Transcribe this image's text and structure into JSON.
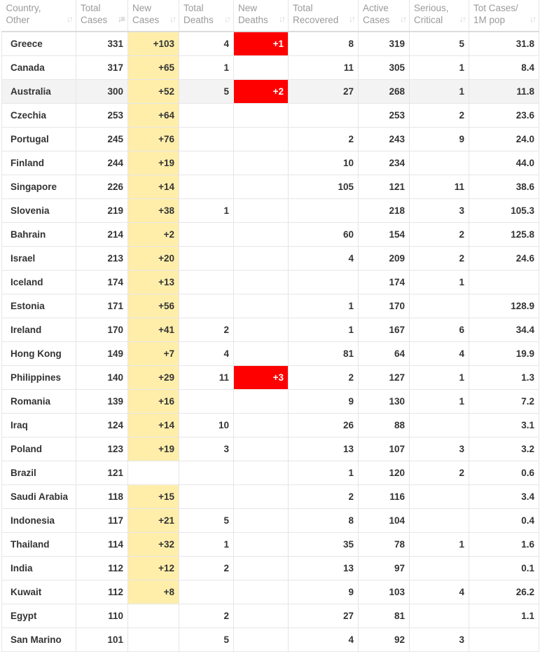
{
  "headers": [
    {
      "key": "country",
      "line1": "Country,",
      "line2": "Other"
    },
    {
      "key": "total_cases",
      "line1": "Total",
      "line2": "Cases"
    },
    {
      "key": "new_cases",
      "line1": "New",
      "line2": "Cases"
    },
    {
      "key": "total_deaths",
      "line1": "Total",
      "line2": "Deaths"
    },
    {
      "key": "new_deaths",
      "line1": "New",
      "line2": "Deaths"
    },
    {
      "key": "total_recovered",
      "line1": "Total",
      "line2": "Recovered"
    },
    {
      "key": "active_cases",
      "line1": "Active",
      "line2": "Cases"
    },
    {
      "key": "serious_critical",
      "line1": "Serious,",
      "line2": "Critical"
    },
    {
      "key": "tot_cases_per_1m",
      "line1": "Tot Cases/",
      "line2": "1M pop"
    }
  ],
  "sort_icon": "sort-arrows-icon",
  "active_sort_column": "total_cases",
  "colors": {
    "new_cases_bg": "#ffeeaa",
    "new_deaths_bg": "#ff0000",
    "highlight_row_bg": "#f3f3f3"
  },
  "highlighted_country": "Australia",
  "rows": [
    {
      "country": "Greece",
      "total_cases": "331",
      "new_cases": "+103",
      "total_deaths": "4",
      "new_deaths": "+1",
      "total_recovered": "8",
      "active_cases": "319",
      "serious_critical": "5",
      "tot_cases_per_1m": "31.8"
    },
    {
      "country": "Canada",
      "total_cases": "317",
      "new_cases": "+65",
      "total_deaths": "1",
      "new_deaths": "",
      "total_recovered": "11",
      "active_cases": "305",
      "serious_critical": "1",
      "tot_cases_per_1m": "8.4"
    },
    {
      "country": "Australia",
      "total_cases": "300",
      "new_cases": "+52",
      "total_deaths": "5",
      "new_deaths": "+2",
      "total_recovered": "27",
      "active_cases": "268",
      "serious_critical": "1",
      "tot_cases_per_1m": "11.8"
    },
    {
      "country": "Czechia",
      "total_cases": "253",
      "new_cases": "+64",
      "total_deaths": "",
      "new_deaths": "",
      "total_recovered": "",
      "active_cases": "253",
      "serious_critical": "2",
      "tot_cases_per_1m": "23.6"
    },
    {
      "country": "Portugal",
      "total_cases": "245",
      "new_cases": "+76",
      "total_deaths": "",
      "new_deaths": "",
      "total_recovered": "2",
      "active_cases": "243",
      "serious_critical": "9",
      "tot_cases_per_1m": "24.0"
    },
    {
      "country": "Finland",
      "total_cases": "244",
      "new_cases": "+19",
      "total_deaths": "",
      "new_deaths": "",
      "total_recovered": "10",
      "active_cases": "234",
      "serious_critical": "",
      "tot_cases_per_1m": "44.0"
    },
    {
      "country": "Singapore",
      "total_cases": "226",
      "new_cases": "+14",
      "total_deaths": "",
      "new_deaths": "",
      "total_recovered": "105",
      "active_cases": "121",
      "serious_critical": "11",
      "tot_cases_per_1m": "38.6"
    },
    {
      "country": "Slovenia",
      "total_cases": "219",
      "new_cases": "+38",
      "total_deaths": "1",
      "new_deaths": "",
      "total_recovered": "",
      "active_cases": "218",
      "serious_critical": "3",
      "tot_cases_per_1m": "105.3"
    },
    {
      "country": "Bahrain",
      "total_cases": "214",
      "new_cases": "+2",
      "total_deaths": "",
      "new_deaths": "",
      "total_recovered": "60",
      "active_cases": "154",
      "serious_critical": "2",
      "tot_cases_per_1m": "125.8"
    },
    {
      "country": "Israel",
      "total_cases": "213",
      "new_cases": "+20",
      "total_deaths": "",
      "new_deaths": "",
      "total_recovered": "4",
      "active_cases": "209",
      "serious_critical": "2",
      "tot_cases_per_1m": "24.6"
    },
    {
      "country": "Iceland",
      "total_cases": "174",
      "new_cases": "+13",
      "total_deaths": "",
      "new_deaths": "",
      "total_recovered": "",
      "active_cases": "174",
      "serious_critical": "1",
      "tot_cases_per_1m": ""
    },
    {
      "country": "Estonia",
      "total_cases": "171",
      "new_cases": "+56",
      "total_deaths": "",
      "new_deaths": "",
      "total_recovered": "1",
      "active_cases": "170",
      "serious_critical": "",
      "tot_cases_per_1m": "128.9"
    },
    {
      "country": "Ireland",
      "total_cases": "170",
      "new_cases": "+41",
      "total_deaths": "2",
      "new_deaths": "",
      "total_recovered": "1",
      "active_cases": "167",
      "serious_critical": "6",
      "tot_cases_per_1m": "34.4"
    },
    {
      "country": "Hong Kong",
      "total_cases": "149",
      "new_cases": "+7",
      "total_deaths": "4",
      "new_deaths": "",
      "total_recovered": "81",
      "active_cases": "64",
      "serious_critical": "4",
      "tot_cases_per_1m": "19.9"
    },
    {
      "country": "Philippines",
      "total_cases": "140",
      "new_cases": "+29",
      "total_deaths": "11",
      "new_deaths": "+3",
      "total_recovered": "2",
      "active_cases": "127",
      "serious_critical": "1",
      "tot_cases_per_1m": "1.3"
    },
    {
      "country": "Romania",
      "total_cases": "139",
      "new_cases": "+16",
      "total_deaths": "",
      "new_deaths": "",
      "total_recovered": "9",
      "active_cases": "130",
      "serious_critical": "1",
      "tot_cases_per_1m": "7.2"
    },
    {
      "country": "Iraq",
      "total_cases": "124",
      "new_cases": "+14",
      "total_deaths": "10",
      "new_deaths": "",
      "total_recovered": "26",
      "active_cases": "88",
      "serious_critical": "",
      "tot_cases_per_1m": "3.1"
    },
    {
      "country": "Poland",
      "total_cases": "123",
      "new_cases": "+19",
      "total_deaths": "3",
      "new_deaths": "",
      "total_recovered": "13",
      "active_cases": "107",
      "serious_critical": "3",
      "tot_cases_per_1m": "3.2"
    },
    {
      "country": "Brazil",
      "total_cases": "121",
      "new_cases": "",
      "total_deaths": "",
      "new_deaths": "",
      "total_recovered": "1",
      "active_cases": "120",
      "serious_critical": "2",
      "tot_cases_per_1m": "0.6"
    },
    {
      "country": "Saudi Arabia",
      "total_cases": "118",
      "new_cases": "+15",
      "total_deaths": "",
      "new_deaths": "",
      "total_recovered": "2",
      "active_cases": "116",
      "serious_critical": "",
      "tot_cases_per_1m": "3.4"
    },
    {
      "country": "Indonesia",
      "total_cases": "117",
      "new_cases": "+21",
      "total_deaths": "5",
      "new_deaths": "",
      "total_recovered": "8",
      "active_cases": "104",
      "serious_critical": "",
      "tot_cases_per_1m": "0.4"
    },
    {
      "country": "Thailand",
      "total_cases": "114",
      "new_cases": "+32",
      "total_deaths": "1",
      "new_deaths": "",
      "total_recovered": "35",
      "active_cases": "78",
      "serious_critical": "1",
      "tot_cases_per_1m": "1.6"
    },
    {
      "country": "India",
      "total_cases": "112",
      "new_cases": "+12",
      "total_deaths": "2",
      "new_deaths": "",
      "total_recovered": "13",
      "active_cases": "97",
      "serious_critical": "",
      "tot_cases_per_1m": "0.1"
    },
    {
      "country": "Kuwait",
      "total_cases": "112",
      "new_cases": "+8",
      "total_deaths": "",
      "new_deaths": "",
      "total_recovered": "9",
      "active_cases": "103",
      "serious_critical": "4",
      "tot_cases_per_1m": "26.2"
    },
    {
      "country": "Egypt",
      "total_cases": "110",
      "new_cases": "",
      "total_deaths": "2",
      "new_deaths": "",
      "total_recovered": "27",
      "active_cases": "81",
      "serious_critical": "",
      "tot_cases_per_1m": "1.1"
    },
    {
      "country": "San Marino",
      "total_cases": "101",
      "new_cases": "",
      "total_deaths": "5",
      "new_deaths": "",
      "total_recovered": "4",
      "active_cases": "92",
      "serious_critical": "3",
      "tot_cases_per_1m": ""
    }
  ]
}
